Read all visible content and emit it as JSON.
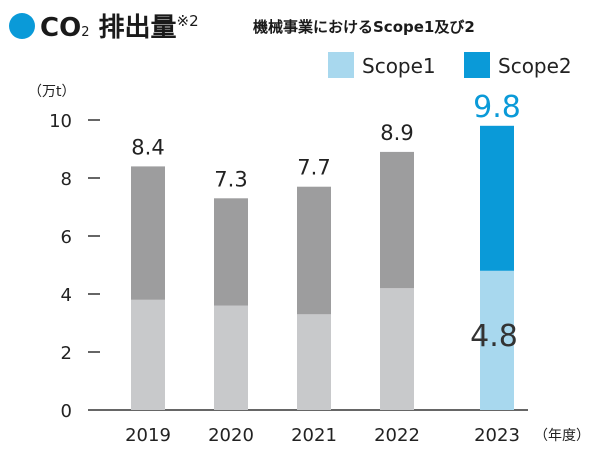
{
  "header": {
    "title_prefix": "CO",
    "title_sub": "2",
    "title_suffix": " 排出量",
    "title_note": "※2",
    "subtitle": "機械事業におけるScope1及び2"
  },
  "legend": [
    {
      "name": "Scope1",
      "color": "#a8d8ee"
    },
    {
      "name": "Scope2",
      "color": "#0a9ad8"
    }
  ],
  "chart_data": {
    "type": "bar",
    "stacked": true,
    "unit_label": "（万t）",
    "x_unit_label": "（年度）",
    "categories": [
      "2019",
      "2020",
      "2021",
      "2022",
      "2023"
    ],
    "series": [
      {
        "name": "Scope1",
        "values": [
          3.8,
          3.6,
          3.3,
          4.2,
          4.8
        ]
      },
      {
        "name": "Scope2",
        "values": [
          4.6,
          3.7,
          4.4,
          4.7,
          5.0
        ]
      }
    ],
    "totals": [
      "8.4",
      "7.3",
      "7.7",
      "8.9",
      "9.8"
    ],
    "highlight_index": 4,
    "highlight_inner_label": "4.8",
    "yticks": [
      0,
      2,
      4,
      6,
      8,
      10
    ],
    "ylim": [
      0,
      10
    ],
    "colors": {
      "past_scope1": "#c8c9cb",
      "past_scope2": "#9d9d9e",
      "current_scope1": "#a8d8ee",
      "current_scope2": "#0a9ad8",
      "highlight_text": "#0a9ad8"
    }
  }
}
